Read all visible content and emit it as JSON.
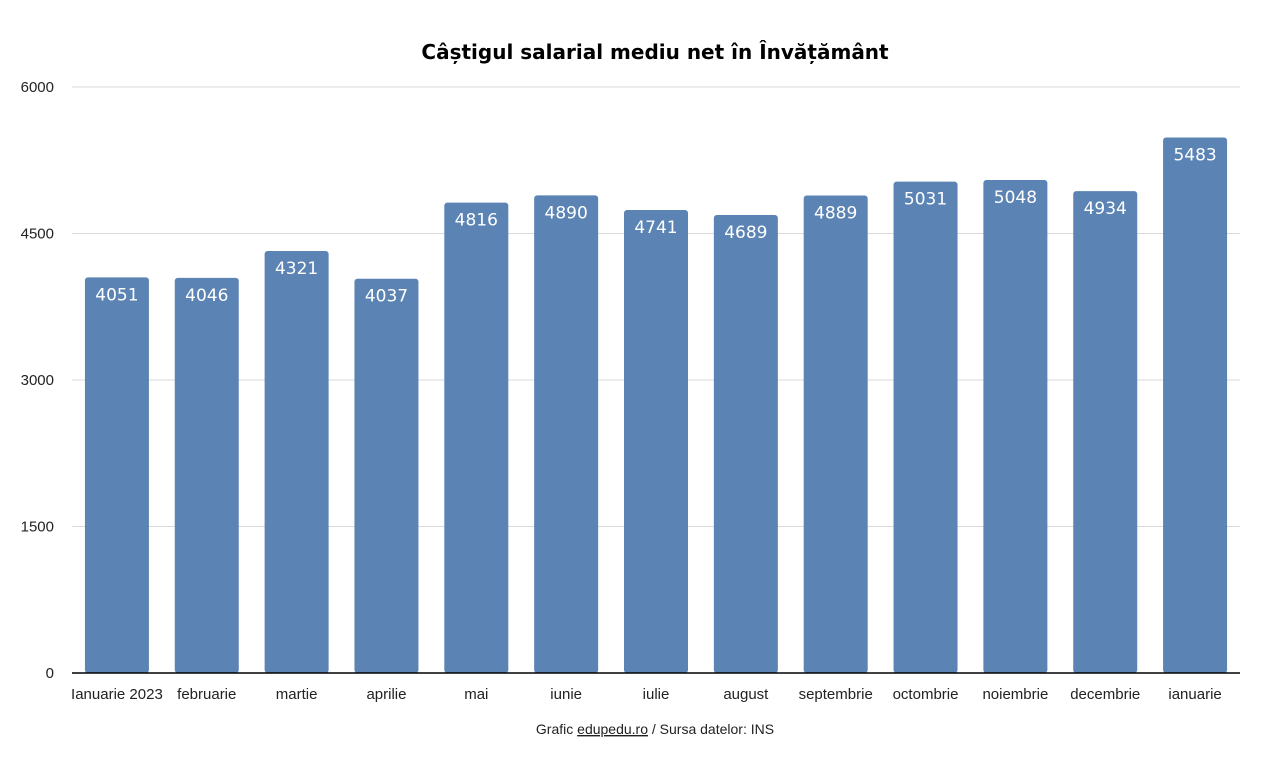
{
  "chart_data": {
    "type": "bar",
    "title": "Câștigul salarial mediu net în Învățământ",
    "xlabel": "",
    "ylabel": "",
    "categories": [
      "Ianuarie 2023",
      "februarie",
      "martie",
      "aprilie",
      "mai",
      "iunie",
      "iulie",
      "august",
      "septembrie",
      "octombrie",
      "noiembrie",
      "decembrie",
      "ianuarie"
    ],
    "values": [
      4051,
      4046,
      4321,
      4037,
      4816,
      4890,
      4741,
      4689,
      4889,
      5031,
      5048,
      4934,
      5483
    ],
    "ylim": [
      0,
      6000
    ],
    "yticks": [
      0,
      1500,
      3000,
      4500,
      6000
    ],
    "grid": true,
    "legend": "none",
    "data_labels": true,
    "colors": {
      "bar": "#5b84b4",
      "gridline": "#d9d9d9",
      "axis": "#000000"
    }
  },
  "footer": {
    "source_prefix": "Grafic ",
    "source_link": "edupedu.ro",
    "source_suffix": " / Sursa datelor: INS"
  }
}
